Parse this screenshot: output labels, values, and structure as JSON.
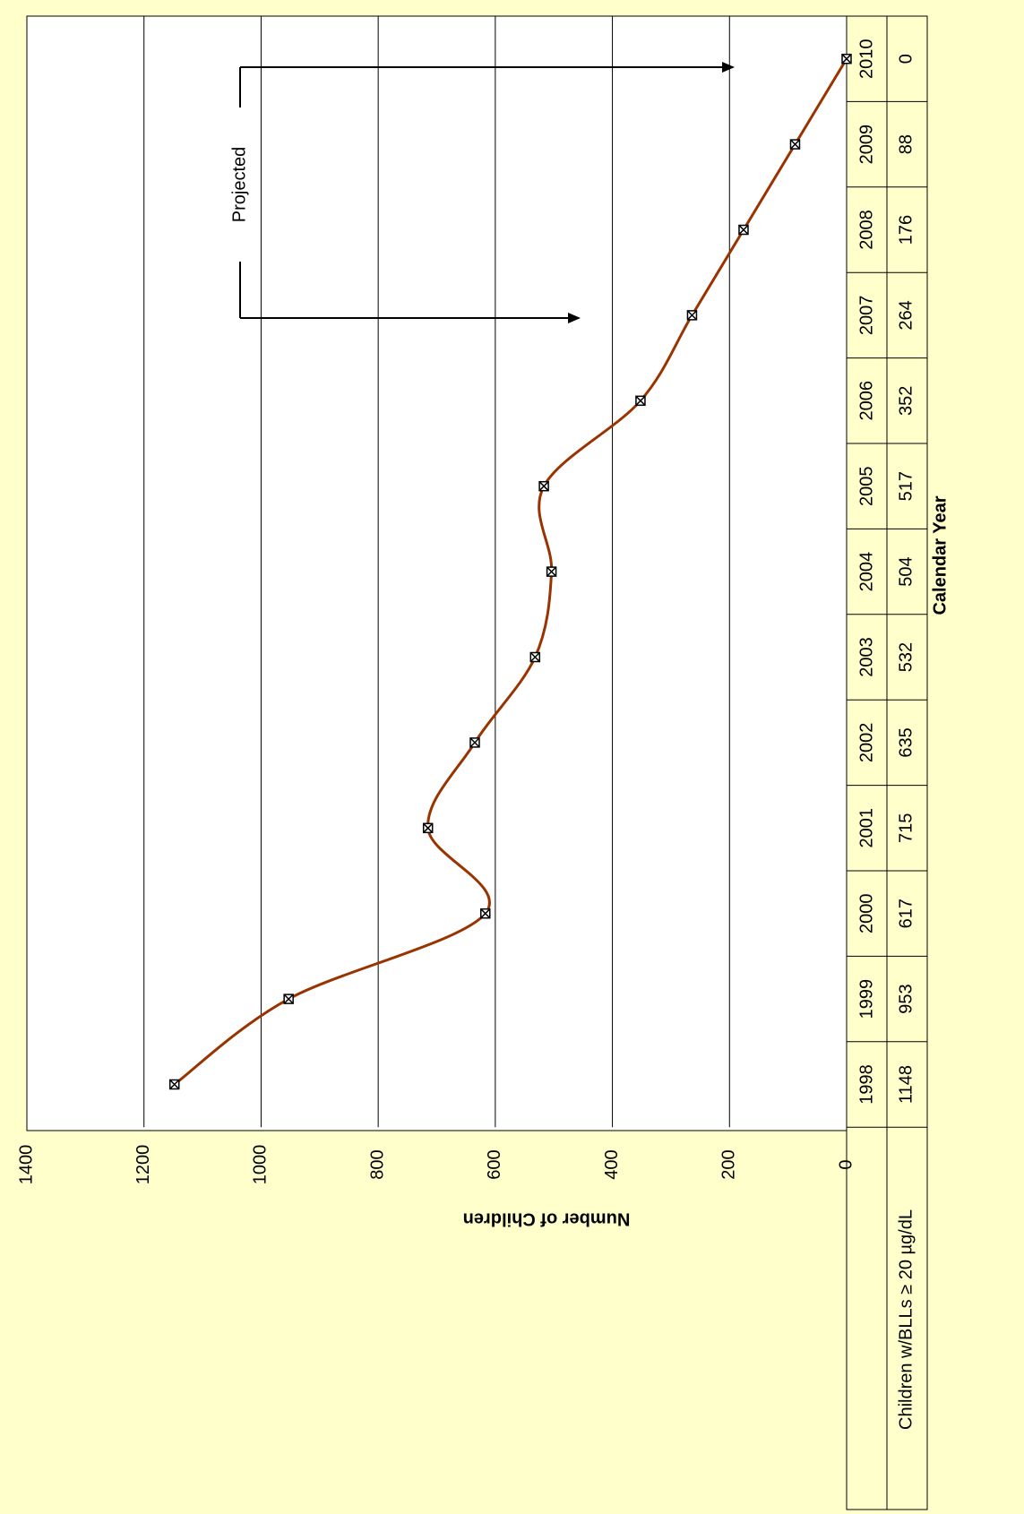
{
  "chart_data": {
    "type": "line",
    "x_label": "Calendar Year",
    "y_label": "Number of Children",
    "annotation": "Projected",
    "categories": [
      "1998",
      "1999",
      "2000",
      "2001",
      "2002",
      "2003",
      "2004",
      "2005",
      "2006",
      "2007",
      "2008",
      "2009",
      "2010"
    ],
    "series": [
      {
        "name": "Children w/BLLs ≥ 20 µg/dL",
        "color": "#993300",
        "values": [
          1148,
          953,
          617,
          715,
          635,
          532,
          504,
          517,
          352,
          264,
          176,
          88,
          0
        ]
      }
    ],
    "ylim": [
      0,
      1400
    ],
    "yticks": [
      0,
      200,
      400,
      600,
      800,
      1000,
      1200,
      1400
    ],
    "grid": true,
    "smooth": true,
    "data_table": true
  }
}
